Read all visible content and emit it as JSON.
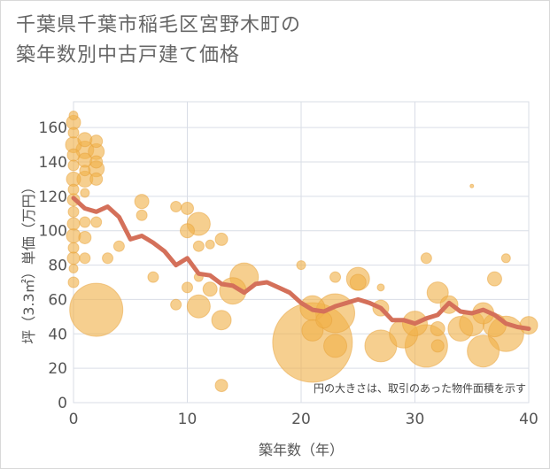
{
  "chart_data": {
    "type": "scatter",
    "title_lines": [
      "千葉県千葉市稲毛区宮野木町の",
      "築年数別中古戸建て価格"
    ],
    "xlabel": "築年数（年）",
    "ylabel": "坪（3.3㎡）単価（万円）",
    "xlim": [
      0,
      40
    ],
    "ylim": [
      0,
      175
    ],
    "xticks": [
      0,
      10,
      20,
      30,
      40
    ],
    "yticks": [
      0,
      20,
      40,
      60,
      80,
      100,
      120,
      140,
      160
    ],
    "grid": true,
    "note": "円の大きさは、取引のあった物件面積を示す",
    "colors": {
      "bubble_fill": "#f0b24b",
      "bubble_edge": "#e8a23a",
      "trend_line": "#d4705a",
      "grid": "#d9dde6",
      "axis_text": "#555555",
      "title_text": "#666666"
    },
    "bubbles": [
      {
        "x": 0,
        "y": 167,
        "r": 5
      },
      {
        "x": 0,
        "y": 163,
        "r": 8
      },
      {
        "x": 0,
        "y": 157,
        "r": 6
      },
      {
        "x": 0,
        "y": 150,
        "r": 9
      },
      {
        "x": 0,
        "y": 144,
        "r": 7
      },
      {
        "x": 0,
        "y": 138,
        "r": 6
      },
      {
        "x": 0,
        "y": 130,
        "r": 8
      },
      {
        "x": 0,
        "y": 124,
        "r": 6
      },
      {
        "x": 0,
        "y": 118,
        "r": 7
      },
      {
        "x": 0,
        "y": 111,
        "r": 6
      },
      {
        "x": 0,
        "y": 104,
        "r": 7
      },
      {
        "x": 0,
        "y": 97,
        "r": 8
      },
      {
        "x": 0,
        "y": 90,
        "r": 6
      },
      {
        "x": 0,
        "y": 84,
        "r": 7
      },
      {
        "x": 0,
        "y": 78,
        "r": 5
      },
      {
        "x": 0,
        "y": 70,
        "r": 6
      },
      {
        "x": 1,
        "y": 153,
        "r": 8
      },
      {
        "x": 1,
        "y": 147,
        "r": 10
      },
      {
        "x": 1,
        "y": 141,
        "r": 8
      },
      {
        "x": 1,
        "y": 135,
        "r": 6
      },
      {
        "x": 1,
        "y": 130,
        "r": 9
      },
      {
        "x": 1,
        "y": 122,
        "r": 5
      },
      {
        "x": 1,
        "y": 105,
        "r": 6
      },
      {
        "x": 1,
        "y": 96,
        "r": 7
      },
      {
        "x": 1,
        "y": 84,
        "r": 6
      },
      {
        "x": 2,
        "y": 152,
        "r": 7
      },
      {
        "x": 2,
        "y": 146,
        "r": 9
      },
      {
        "x": 2,
        "y": 140,
        "r": 7
      },
      {
        "x": 2,
        "y": 136,
        "r": 9
      },
      {
        "x": 2,
        "y": 130,
        "r": 7
      },
      {
        "x": 2,
        "y": 105,
        "r": 6
      },
      {
        "x": 2,
        "y": 54,
        "r": 30
      },
      {
        "x": 3,
        "y": 84,
        "r": 6
      },
      {
        "x": 4,
        "y": 91,
        "r": 6
      },
      {
        "x": 6,
        "y": 117,
        "r": 8
      },
      {
        "x": 6,
        "y": 109,
        "r": 6
      },
      {
        "x": 7,
        "y": 73,
        "r": 6
      },
      {
        "x": 9,
        "y": 114,
        "r": 6
      },
      {
        "x": 9,
        "y": 57,
        "r": 6
      },
      {
        "x": 10,
        "y": 113,
        "r": 7
      },
      {
        "x": 10,
        "y": 100,
        "r": 8
      },
      {
        "x": 10,
        "y": 67,
        "r": 6
      },
      {
        "x": 11,
        "y": 104,
        "r": 13
      },
      {
        "x": 11,
        "y": 91,
        "r": 6
      },
      {
        "x": 11,
        "y": 73,
        "r": 5
      },
      {
        "x": 11,
        "y": 56,
        "r": 13
      },
      {
        "x": 12,
        "y": 92,
        "r": 5
      },
      {
        "x": 12,
        "y": 66,
        "r": 8
      },
      {
        "x": 13,
        "y": 95,
        "r": 7
      },
      {
        "x": 13,
        "y": 48,
        "r": 11
      },
      {
        "x": 13,
        "y": 10,
        "r": 7
      },
      {
        "x": 14,
        "y": 65,
        "r": 15
      },
      {
        "x": 15,
        "y": 73,
        "r": 16
      },
      {
        "x": 20,
        "y": 80,
        "r": 5
      },
      {
        "x": 21,
        "y": 35,
        "r": 45
      },
      {
        "x": 21,
        "y": 42,
        "r": 12
      },
      {
        "x": 21,
        "y": 55,
        "r": 14
      },
      {
        "x": 22,
        "y": 48,
        "r": 9
      },
      {
        "x": 23,
        "y": 73,
        "r": 6
      },
      {
        "x": 23,
        "y": 52,
        "r": 22
      },
      {
        "x": 23,
        "y": 33,
        "r": 13
      },
      {
        "x": 25,
        "y": 72,
        "r": 13
      },
      {
        "x": 25,
        "y": 70,
        "r": 9
      },
      {
        "x": 27,
        "y": 67,
        "r": 4
      },
      {
        "x": 27,
        "y": 55,
        "r": 9
      },
      {
        "x": 27,
        "y": 33,
        "r": 18
      },
      {
        "x": 29,
        "y": 40,
        "r": 16
      },
      {
        "x": 30,
        "y": 46,
        "r": 14
      },
      {
        "x": 31,
        "y": 84,
        "r": 6
      },
      {
        "x": 31,
        "y": 33,
        "r": 24
      },
      {
        "x": 32,
        "y": 64,
        "r": 12
      },
      {
        "x": 32,
        "y": 43,
        "r": 8
      },
      {
        "x": 32,
        "y": 33,
        "r": 7
      },
      {
        "x": 33,
        "y": 57,
        "r": 10
      },
      {
        "x": 34,
        "y": 43,
        "r": 14
      },
      {
        "x": 35,
        "y": 126,
        "r": 2
      },
      {
        "x": 35,
        "y": 46,
        "r": 14
      },
      {
        "x": 36,
        "y": 52,
        "r": 12
      },
      {
        "x": 36,
        "y": 30,
        "r": 18
      },
      {
        "x": 37,
        "y": 72,
        "r": 8
      },
      {
        "x": 37,
        "y": 45,
        "r": 13
      },
      {
        "x": 38,
        "y": 84,
        "r": 5
      },
      {
        "x": 38,
        "y": 40,
        "r": 20
      },
      {
        "x": 40,
        "y": 45,
        "r": 10
      }
    ],
    "trend_line": {
      "x": [
        0,
        1,
        2,
        3,
        4,
        5,
        6,
        7,
        8,
        9,
        10,
        11,
        12,
        13,
        14,
        15,
        16,
        17,
        18,
        19,
        20,
        21,
        22,
        23,
        24,
        25,
        26,
        27,
        28,
        29,
        30,
        31,
        32,
        33,
        34,
        35,
        36,
        37,
        38,
        39,
        40
      ],
      "y": [
        119,
        113,
        111,
        114,
        108,
        95,
        97,
        93,
        88,
        80,
        84,
        75,
        74,
        69,
        68,
        64,
        69,
        70,
        67,
        64,
        58,
        54,
        53,
        56,
        58,
        60,
        58,
        55,
        48,
        48,
        46,
        49,
        51,
        58,
        53,
        52,
        54,
        51,
        46,
        44,
        43
      ]
    }
  }
}
